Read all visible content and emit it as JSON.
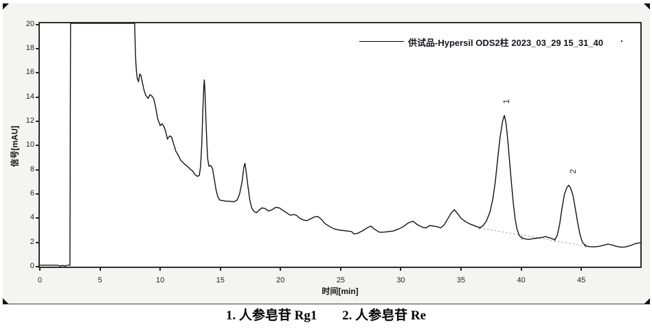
{
  "colors": {
    "page_bg": "#ffffff",
    "panel_bg": "#f4f4f2",
    "plot_bg": "#ffffff",
    "plot_border": "#2b2b2b",
    "curve": "#111111",
    "baseline_dash": "#9a9a9a",
    "tick_text": "#222222",
    "legend_text": "#15151f"
  },
  "legend": {
    "label": "供试品-Hypersil ODS2柱 2023_03_29 15_31_40",
    "trailing_dot": "."
  },
  "axes": {
    "x": {
      "title": "时间[min]",
      "ticks": [
        0,
        5,
        10,
        15,
        20,
        25,
        30,
        35,
        40,
        45
      ],
      "lim": [
        0,
        49.9
      ]
    },
    "y": {
      "title": "信号[mAU]",
      "ticks": [
        0,
        2,
        4,
        6,
        8,
        10,
        12,
        14,
        16,
        18,
        20
      ],
      "lim": [
        0,
        20.1
      ]
    }
  },
  "caption": {
    "items": [
      "1.  人参皂苷 Rg1",
      "2.  人参皂苷 Re"
    ]
  },
  "chart_data": {
    "type": "line",
    "title": "",
    "xlabel": "时间[min]",
    "ylabel": "信号[mAU]",
    "xlim": [
      0,
      49.9
    ],
    "ylim": [
      0,
      20.1
    ],
    "xticks": [
      0,
      5,
      10,
      15,
      20,
      25,
      30,
      35,
      40,
      45
    ],
    "yticks": [
      0,
      2,
      4,
      6,
      8,
      10,
      12,
      14,
      16,
      18,
      20
    ],
    "grid": false,
    "legend_position": "top-right-inside",
    "series": [
      {
        "name": "供试品-Hypersil ODS2柱 2023_03_29 15_31_40",
        "points": [
          [
            0,
            0.12
          ],
          [
            0.5,
            0.12
          ],
          [
            1.0,
            0.12
          ],
          [
            1.5,
            0.12
          ],
          [
            1.7,
            0.05
          ],
          [
            1.9,
            0.1
          ],
          [
            2.1,
            0.05
          ],
          [
            2.3,
            0.12
          ],
          [
            2.5,
            0.12
          ],
          [
            2.55,
            20.1
          ],
          [
            7.88,
            20.1
          ],
          [
            7.92,
            18.5
          ],
          [
            7.97,
            17.0
          ],
          [
            8.02,
            16.2
          ],
          [
            8.1,
            15.5
          ],
          [
            8.2,
            15.3
          ],
          [
            8.3,
            15.9
          ],
          [
            8.4,
            15.8
          ],
          [
            8.5,
            15.3
          ],
          [
            8.65,
            14.6
          ],
          [
            8.8,
            14.15
          ],
          [
            9.0,
            13.9
          ],
          [
            9.15,
            14.2
          ],
          [
            9.3,
            14.1
          ],
          [
            9.45,
            13.9
          ],
          [
            9.6,
            13.3
          ],
          [
            9.8,
            12.2
          ],
          [
            10.0,
            11.65
          ],
          [
            10.15,
            11.8
          ],
          [
            10.3,
            11.6
          ],
          [
            10.45,
            11.2
          ],
          [
            10.6,
            10.55
          ],
          [
            10.8,
            10.8
          ],
          [
            10.95,
            10.7
          ],
          [
            11.1,
            10.2
          ],
          [
            11.3,
            9.55
          ],
          [
            11.5,
            9.2
          ],
          [
            11.7,
            8.8
          ],
          [
            11.9,
            8.6
          ],
          [
            12.1,
            8.4
          ],
          [
            12.3,
            8.25
          ],
          [
            12.5,
            8.05
          ],
          [
            12.7,
            7.9
          ],
          [
            12.9,
            7.6
          ],
          [
            13.1,
            7.45
          ],
          [
            13.25,
            7.55
          ],
          [
            13.35,
            8.2
          ],
          [
            13.45,
            10.0
          ],
          [
            13.55,
            13.0
          ],
          [
            13.62,
            14.8
          ],
          [
            13.67,
            15.45
          ],
          [
            13.72,
            14.5
          ],
          [
            13.8,
            12.2
          ],
          [
            13.88,
            10.2
          ],
          [
            13.95,
            8.9
          ],
          [
            14.05,
            8.3
          ],
          [
            14.2,
            8.35
          ],
          [
            14.35,
            8.1
          ],
          [
            14.5,
            7.2
          ],
          [
            14.65,
            6.3
          ],
          [
            14.8,
            5.75
          ],
          [
            14.95,
            5.5
          ],
          [
            15.2,
            5.45
          ],
          [
            15.5,
            5.4
          ],
          [
            15.8,
            5.4
          ],
          [
            16.1,
            5.35
          ],
          [
            16.4,
            5.5
          ],
          [
            16.6,
            6.0
          ],
          [
            16.8,
            7.0
          ],
          [
            16.95,
            8.2
          ],
          [
            17.04,
            8.55
          ],
          [
            17.15,
            7.8
          ],
          [
            17.3,
            6.6
          ],
          [
            17.45,
            5.5
          ],
          [
            17.6,
            4.85
          ],
          [
            17.8,
            4.55
          ],
          [
            18.0,
            4.45
          ],
          [
            18.2,
            4.65
          ],
          [
            18.45,
            4.85
          ],
          [
            18.7,
            4.8
          ],
          [
            19.0,
            4.6
          ],
          [
            19.3,
            4.7
          ],
          [
            19.6,
            4.9
          ],
          [
            19.9,
            4.85
          ],
          [
            20.2,
            4.65
          ],
          [
            20.5,
            4.45
          ],
          [
            20.8,
            4.25
          ],
          [
            21.1,
            4.3
          ],
          [
            21.3,
            4.25
          ],
          [
            21.6,
            4.0
          ],
          [
            21.9,
            3.85
          ],
          [
            22.2,
            3.8
          ],
          [
            22.5,
            3.95
          ],
          [
            22.8,
            4.1
          ],
          [
            23.1,
            4.15
          ],
          [
            23.4,
            3.9
          ],
          [
            23.7,
            3.55
          ],
          [
            24.1,
            3.3
          ],
          [
            24.5,
            3.1
          ],
          [
            25.0,
            3.0
          ],
          [
            25.5,
            2.95
          ],
          [
            25.9,
            2.9
          ],
          [
            26.1,
            2.7
          ],
          [
            26.4,
            2.75
          ],
          [
            26.8,
            2.95
          ],
          [
            27.2,
            3.2
          ],
          [
            27.5,
            3.35
          ],
          [
            27.8,
            3.1
          ],
          [
            28.2,
            2.85
          ],
          [
            28.6,
            2.85
          ],
          [
            29.0,
            2.9
          ],
          [
            29.4,
            2.95
          ],
          [
            29.8,
            3.1
          ],
          [
            30.2,
            3.3
          ],
          [
            30.6,
            3.6
          ],
          [
            31.0,
            3.75
          ],
          [
            31.4,
            3.45
          ],
          [
            31.8,
            3.25
          ],
          [
            32.1,
            3.2
          ],
          [
            32.4,
            3.4
          ],
          [
            32.7,
            3.35
          ],
          [
            33.0,
            3.3
          ],
          [
            33.3,
            3.2
          ],
          [
            33.6,
            3.45
          ],
          [
            33.9,
            3.95
          ],
          [
            34.2,
            4.45
          ],
          [
            34.45,
            4.7
          ],
          [
            34.7,
            4.4
          ],
          [
            35.0,
            4.0
          ],
          [
            35.4,
            3.7
          ],
          [
            35.8,
            3.5
          ],
          [
            36.2,
            3.35
          ],
          [
            36.55,
            3.2
          ],
          [
            36.8,
            3.35
          ],
          [
            37.1,
            3.75
          ],
          [
            37.4,
            4.5
          ],
          [
            37.65,
            5.6
          ],
          [
            37.85,
            7.0
          ],
          [
            38.05,
            8.9
          ],
          [
            38.25,
            10.7
          ],
          [
            38.45,
            12.0
          ],
          [
            38.6,
            12.5
          ],
          [
            38.75,
            11.8
          ],
          [
            38.9,
            10.3
          ],
          [
            39.05,
            8.5
          ],
          [
            39.2,
            6.8
          ],
          [
            39.35,
            5.2
          ],
          [
            39.5,
            3.95
          ],
          [
            39.65,
            3.1
          ],
          [
            39.85,
            2.55
          ],
          [
            40.05,
            2.37
          ],
          [
            40.3,
            2.3
          ],
          [
            40.6,
            2.25
          ],
          [
            40.9,
            2.3
          ],
          [
            41.3,
            2.35
          ],
          [
            41.7,
            2.4
          ],
          [
            42.0,
            2.48
          ],
          [
            42.3,
            2.4
          ],
          [
            42.6,
            2.3
          ],
          [
            42.8,
            2.2
          ],
          [
            43.0,
            2.6
          ],
          [
            43.2,
            3.5
          ],
          [
            43.4,
            4.9
          ],
          [
            43.6,
            6.0
          ],
          [
            43.8,
            6.55
          ],
          [
            43.95,
            6.72
          ],
          [
            44.1,
            6.5
          ],
          [
            44.3,
            5.9
          ],
          [
            44.5,
            4.8
          ],
          [
            44.7,
            3.6
          ],
          [
            44.9,
            2.6
          ],
          [
            45.1,
            2.0
          ],
          [
            45.35,
            1.72
          ],
          [
            45.7,
            1.65
          ],
          [
            46.1,
            1.63
          ],
          [
            46.5,
            1.68
          ],
          [
            46.9,
            1.78
          ],
          [
            47.2,
            1.86
          ],
          [
            47.5,
            1.8
          ],
          [
            47.9,
            1.68
          ],
          [
            48.3,
            1.6
          ],
          [
            48.7,
            1.63
          ],
          [
            49.1,
            1.75
          ],
          [
            49.5,
            1.9
          ],
          [
            49.9,
            1.97
          ]
        ]
      }
    ],
    "baseline_segments": [
      {
        "from": [
          36.55,
          3.2
        ],
        "to": [
          45.35,
          1.7
        ]
      }
    ],
    "integration_ticks": [
      [
        36.55,
        3.2
      ],
      [
        40.05,
        2.37
      ],
      [
        42.8,
        2.2
      ],
      [
        45.35,
        1.72
      ]
    ],
    "peaks": [
      {
        "label": "1",
        "t": 38.76,
        "v": 13.65,
        "retention_time_min": 38.6,
        "height_mAU": 12.5,
        "compound": "人参皂苷 Rg1"
      },
      {
        "label": "2",
        "t": 44.3,
        "v": 7.87,
        "retention_time_min": 44.0,
        "height_mAU": 6.7,
        "compound": "人参皂苷 Re"
      }
    ]
  }
}
